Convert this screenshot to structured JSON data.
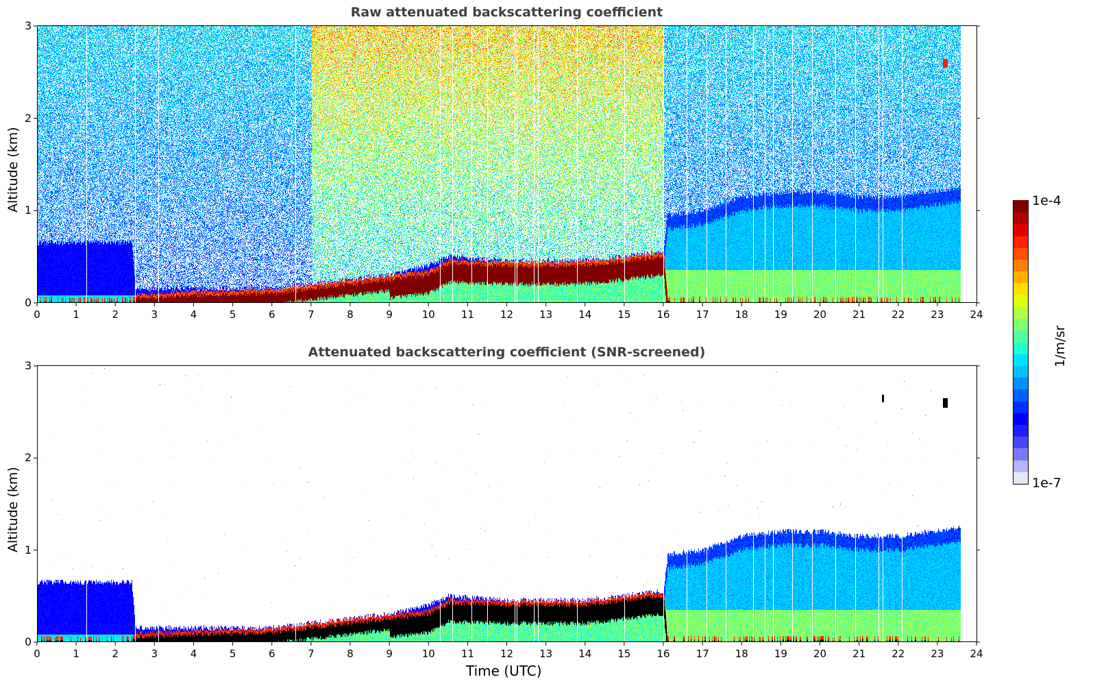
{
  "chart_data": [
    {
      "type": "heatmap",
      "title": "Raw attenuated backscattering coefficient",
      "xlabel": "",
      "ylabel": "Altitude (km)",
      "xlim": [
        0,
        24
      ],
      "ylim": [
        0,
        3
      ],
      "xticks": [
        0,
        1,
        2,
        3,
        4,
        5,
        6,
        7,
        8,
        9,
        10,
        11,
        12,
        13,
        14,
        15,
        16,
        17,
        18,
        19,
        20,
        21,
        22,
        23,
        24
      ],
      "yticks": [
        0,
        1,
        2,
        3
      ],
      "data_end_hour": 23.6,
      "screening": "none",
      "features": {
        "surface_layer": "dense aerosol below ~0.6 km from 0 to 2.5 UTC (blue, ~1e-6)",
        "cloud_base_layer": "saturated (dark red) layer rising from ~0.05 km at 2.5 UTC to ~0.5 km at 16 UTC",
        "boundary_layer_afternoon": "aerosol layer up to ~1.2 km from 16 to 23.6 UTC (cyan/blue)",
        "noise": "speckled noise above the layers, stronger (green/yellow) between ~7 and 16 UTC",
        "isolated_feature": "small red spot near 2.6 km at ~23.2 UTC"
      },
      "boundary_profile": {
        "hours": [
          0,
          2.4,
          2.5,
          4,
          6,
          7,
          8,
          9,
          10,
          10.5,
          12,
          14,
          16,
          16.1,
          17,
          18,
          19,
          20,
          21,
          22,
          23.6
        ],
        "layer_top_km": [
          0.65,
          0.65,
          0.15,
          0.15,
          0.15,
          0.2,
          0.25,
          0.3,
          0.4,
          0.5,
          0.45,
          0.45,
          0.55,
          0.95,
          1.0,
          1.15,
          1.2,
          1.2,
          1.15,
          1.15,
          1.25
        ],
        "dense_layer_km": [
          0,
          0,
          0.05,
          0.08,
          0.1,
          0.15,
          0.2,
          0.25,
          0.3,
          0.42,
          0.4,
          0.4,
          0.5,
          0,
          0,
          0,
          0,
          0,
          0,
          0,
          0
        ]
      }
    },
    {
      "type": "heatmap",
      "title": "Attenuated backscattering coefficient (SNR-screened)",
      "xlabel": "Time (UTC)",
      "ylabel": "Altitude (km)",
      "xlim": [
        0,
        24
      ],
      "ylim": [
        0,
        3
      ],
      "xticks": [
        0,
        1,
        2,
        3,
        4,
        5,
        6,
        7,
        8,
        9,
        10,
        11,
        12,
        13,
        14,
        15,
        16,
        17,
        18,
        19,
        20,
        21,
        22,
        23,
        24
      ],
      "yticks": [
        0,
        1,
        2,
        3
      ],
      "data_end_hour": 23.6,
      "screening": "SNR",
      "features": {
        "saturated_values": "shown in black",
        "isolated_feature": "black spots near 2.6 km at ~21.6 and ~23.2 UTC"
      }
    }
  ],
  "colorbar": {
    "label": "1/m/sr",
    "min_label": "1e-7",
    "max_label": "1e-4",
    "scale": "log",
    "vmin": 1e-07,
    "vmax": 0.0001,
    "colormap": "jet (white-blue-cyan-green-yellow-red-darkred)",
    "colors": [
      "#e6e6fa",
      "#b4b4ff",
      "#7878ff",
      "#4646ff",
      "#1e1eff",
      "#0000ff",
      "#0030ff",
      "#0060ff",
      "#0090ff",
      "#00c0ff",
      "#00e0ff",
      "#20ffd0",
      "#50ffa0",
      "#80ff70",
      "#b0ff40",
      "#e0ff10",
      "#ffe000",
      "#ffb000",
      "#ff8000",
      "#ff5000",
      "#ff2000",
      "#e00000",
      "#b00000",
      "#800000"
    ]
  }
}
